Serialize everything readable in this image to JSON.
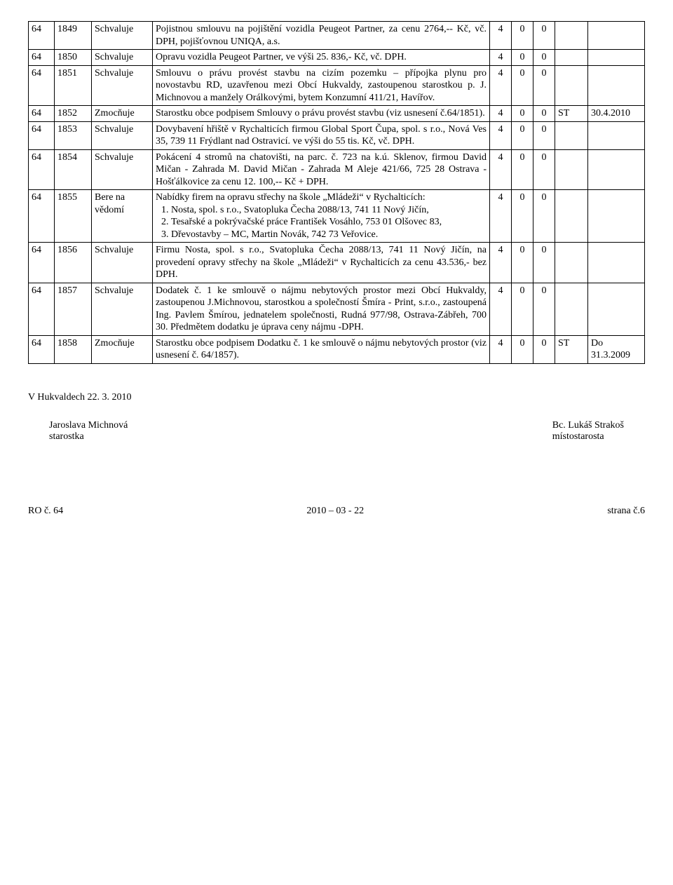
{
  "rows": [
    {
      "a": "64",
      "b": "1849",
      "c": "Schvaluje",
      "d": "Pojistnou smlouvu na pojištění vozidla Peugeot Partner, za cenu 2764,-- Kč, vč. DPH, pojišťovnou UNIQA, a.s.",
      "e": "4",
      "f": "0",
      "g": "0",
      "h": "",
      "i": ""
    },
    {
      "a": "64",
      "b": "1850",
      "c": "Schvaluje",
      "d": "Opravu vozidla Peugeot Partner, ve výši 25. 836,- Kč, vč. DPH.",
      "e": "4",
      "f": "0",
      "g": "0",
      "h": "",
      "i": ""
    },
    {
      "a": "64",
      "b": "1851",
      "c": "Schvaluje",
      "d": "Smlouvu o právu provést stavbu na cizím pozemku – přípojka plynu pro novostavbu RD, uzavřenou mezi Obcí Hukvaldy, zastoupenou starostkou p. J. Michnovou a manžely Orálkovými, bytem Konzumní 411/21, Havířov.",
      "e": "4",
      "f": "0",
      "g": "0",
      "h": "",
      "i": ""
    },
    {
      "a": "64",
      "b": "1852",
      "c": "Zmocňuje",
      "d": "Starostku obce podpisem Smlouvy o právu provést stavbu (viz usnesení č.64/1851).",
      "e": "4",
      "f": "0",
      "g": "0",
      "h": "ST",
      "i": "30.4.2010"
    },
    {
      "a": "64",
      "b": "1853",
      "c": "Schvaluje",
      "d": "Dovybavení hřiště v Rychalticích firmou Global Sport Čupa, spol. s r.o., Nová Ves 35, 739 11 Frýdlant nad Ostravicí. ve výši do 55 tis. Kč, vč. DPH.",
      "e": "4",
      "f": "0",
      "g": "0",
      "h": "",
      "i": ""
    },
    {
      "a": "64",
      "b": "1854",
      "c": "Schvaluje",
      "d": "Pokácení 4 stromů na chatovišti, na parc. č. 723 na k.ú. Sklenov, firmou David Mičan - Zahrada M. David Mičan - Zahrada M Aleje 421/66, 725 28 Ostrava - Hošťálkovice za cenu 12. 100,-- Kč + DPH.",
      "e": "4",
      "f": "0",
      "g": "0",
      "h": "",
      "i": ""
    },
    {
      "a": "64",
      "b": "1855",
      "c": "Bere na vědomí",
      "d_intro": "Nabídky firem na opravu střechy na škole „Mládeži“ v Rychalticích:",
      "d_list": [
        "Nosta, spol. s r.o., Svatopluka Čecha 2088/13, 741 11 Nový Jičín,",
        "Tesařské a pokrývačské práce František Vosáhlo, 753 01 Olšovec 83,",
        "Dřevostavby – MC, Martin Novák, 742 73 Veřovice."
      ],
      "e": "4",
      "f": "0",
      "g": "0",
      "h": "",
      "i": ""
    },
    {
      "a": "64",
      "b": "1856",
      "c": "Schvaluje",
      "d": "Firmu Nosta, spol. s r.o., Svatopluka Čecha 2088/13, 741 11 Nový Jičín, na provedení opravy střechy na škole „Mládeži“ v Rychalticích za cenu 43.536,- bez DPH.",
      "e": "4",
      "f": "0",
      "g": "0",
      "h": "",
      "i": ""
    },
    {
      "a": "64",
      "b": "1857",
      "c": "Schvaluje",
      "d": "Dodatek č. 1 ke smlouvě o nájmu nebytových prostor mezi Obcí Hukvaldy, zastoupenou J.Michnovou, starostkou a společností Šmíra - Print, s.r.o., zastoupená Ing. Pavlem Šmírou, jednatelem společnosti, Rudná 977/98, Ostrava-Zábřeh, 700 30. Předmětem dodatku je úprava ceny nájmu -DPH.",
      "e": "4",
      "f": "0",
      "g": "0",
      "h": "",
      "i": ""
    },
    {
      "a": "64",
      "b": "1858",
      "c": "Zmocňuje",
      "d": "Starostku obce podpisem Dodatku č. 1 ke smlouvě o nájmu nebytových prostor (viz usnesení č. 64/1857).",
      "e": "4",
      "f": "0",
      "g": "0",
      "h": "ST",
      "i": "Do 31.3.2009"
    }
  ],
  "gap_after": [
    1,
    3
  ],
  "footer": {
    "place_date": "V Hukvaldech 22. 3. 2010",
    "left_name": "Jaroslava Michnová",
    "left_role": "starostka",
    "right_name": "Bc. Lukáš Strakoš",
    "right_role": "místostarosta",
    "foot_left": "RO č. 64",
    "foot_center": "2010 – 03 - 22",
    "foot_right": "strana č.6"
  }
}
